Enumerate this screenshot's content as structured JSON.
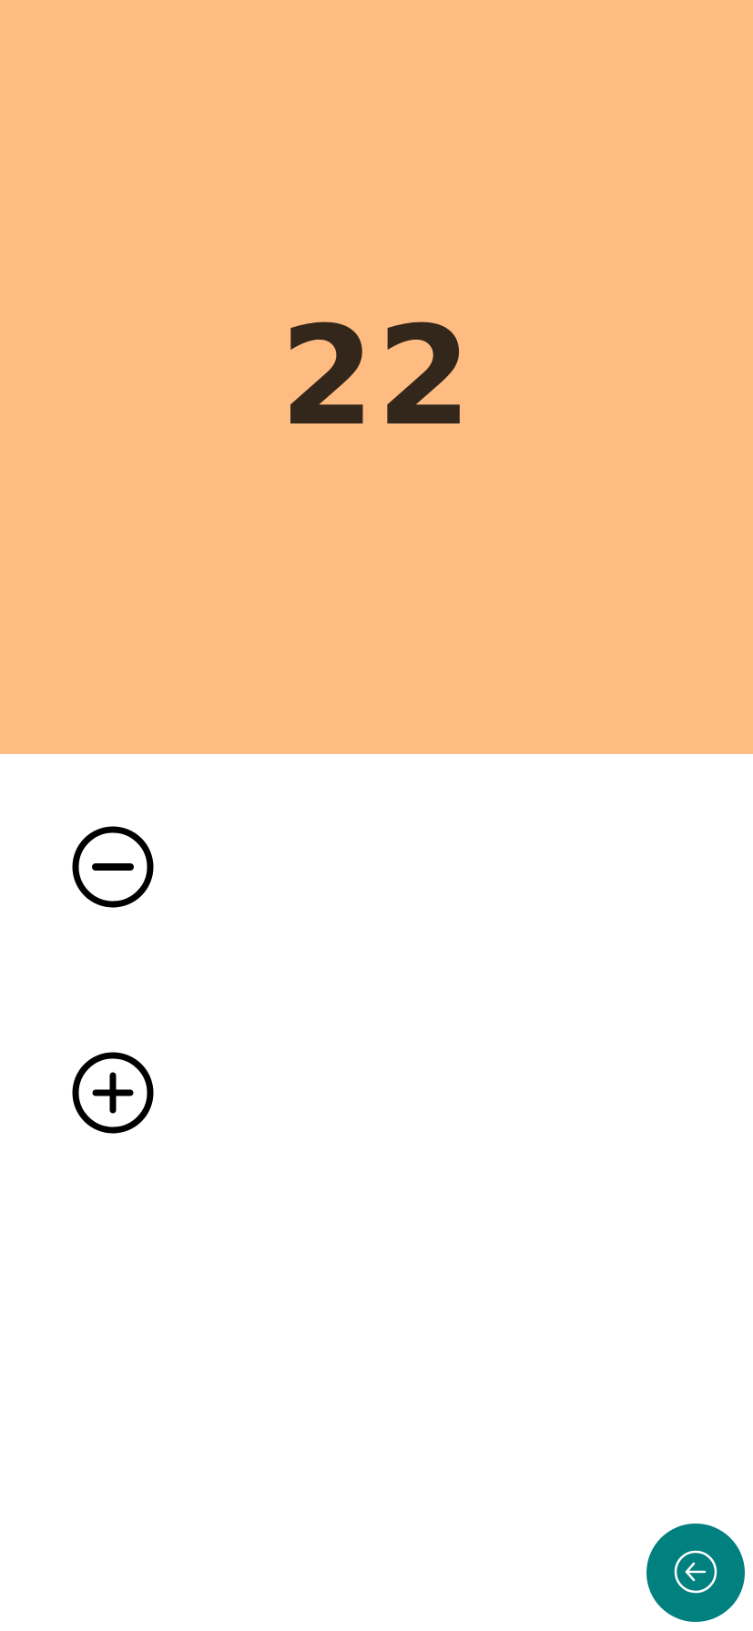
{
  "counter": {
    "value": "22",
    "background_color": "#FFBC82",
    "text_color": "#33261A"
  },
  "controls": {
    "decrement_icon": "minus-circle-icon",
    "increment_icon": "plus-circle-icon"
  },
  "fab": {
    "icon": "back-arrow-circle-icon",
    "color": "#00807F"
  }
}
